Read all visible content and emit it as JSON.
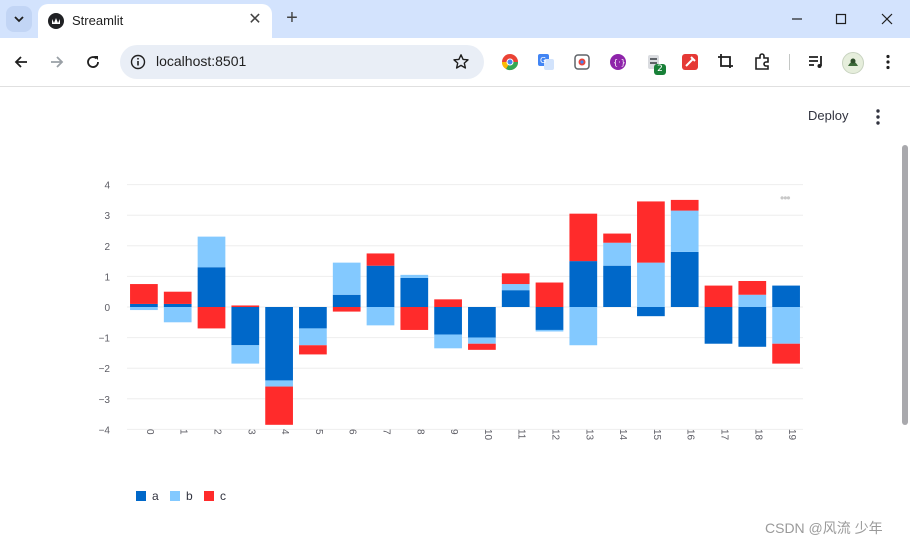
{
  "browser": {
    "tab_title": "Streamlit",
    "url": "localhost:8501",
    "extension_badge": "2"
  },
  "app": {
    "deploy_label": "Deploy",
    "chart_menu": "•••"
  },
  "watermark": "CSDN @风流 少年",
  "colors": {
    "a": "#0068c9",
    "b": "#83c9ff",
    "c": "#ff2b2b"
  },
  "chart_data": {
    "type": "bar",
    "stacked": true,
    "categories": [
      "0",
      "1",
      "2",
      "3",
      "4",
      "5",
      "6",
      "7",
      "8",
      "9",
      "10",
      "11",
      "12",
      "13",
      "14",
      "15",
      "16",
      "17",
      "18",
      "19"
    ],
    "series": [
      {
        "name": "a",
        "values": [
          0.1,
          0.1,
          1.3,
          -1.25,
          -2.4,
          -0.7,
          0.4,
          1.35,
          0.95,
          -0.9,
          -1.0,
          0.55,
          -0.75,
          1.5,
          1.35,
          -0.3,
          1.8,
          -1.2,
          -1.3,
          0.7
        ]
      },
      {
        "name": "b",
        "values": [
          -0.1,
          -0.5,
          1.0,
          -0.6,
          -0.2,
          -0.55,
          1.05,
          -0.6,
          0.1,
          -0.45,
          -0.2,
          0.2,
          -0.05,
          -1.25,
          0.75,
          1.45,
          1.35,
          0.0,
          0.4,
          -1.2
        ]
      },
      {
        "name": "c",
        "values": [
          0.65,
          0.4,
          -0.7,
          0.05,
          -1.25,
          -0.3,
          -0.15,
          0.4,
          -0.75,
          0.25,
          -0.2,
          0.35,
          0.8,
          1.55,
          0.3,
          2.0,
          0.35,
          0.7,
          0.45,
          -0.65
        ]
      }
    ],
    "y_ticks": [
      "4",
      "3",
      "2",
      "1",
      "0",
      "−1",
      "−2",
      "−3",
      "−4"
    ],
    "ylim": [
      -4,
      4
    ],
    "grid": true,
    "legend": "bottom-left"
  }
}
